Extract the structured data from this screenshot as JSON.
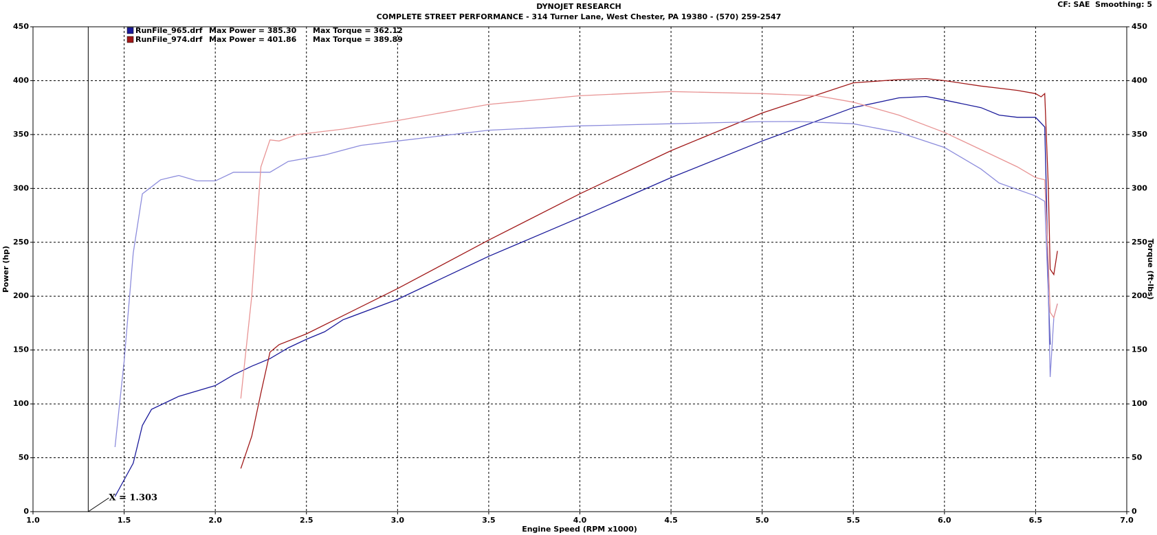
{
  "chart_data": {
    "type": "line",
    "title": "DYNOJET RESEARCH",
    "subtitle": "COMPLETE STREET PERFORMANCE - 314 Turner Lane, West Chester, PA 19380 - (570) 259-2547",
    "settings_label": "CF: SAE  Smoothing: 5",
    "x_label": "Engine Speed (RPM x1000)",
    "y_label": "Power (hp)",
    "y2_label": "Torque (ft-lbs)",
    "xlim": [
      1,
      7
    ],
    "xticks": [
      {
        "value": 1,
        "label": "1.0"
      },
      1.5,
      {
        "value": 2,
        "label": "2.0"
      },
      2.5,
      {
        "value": 3,
        "label": "3.0"
      },
      3.5,
      {
        "value": 4,
        "label": "4.0"
      },
      4.5,
      {
        "value": 5,
        "label": "5.0"
      },
      5.5,
      {
        "value": 6,
        "label": "6.0"
      },
      6.5,
      {
        "value": 7,
        "label": "7.0"
      }
    ],
    "ylim": [
      0,
      450
    ],
    "yticks": [
      0,
      50,
      100,
      150,
      200,
      250,
      300,
      350,
      400,
      450
    ],
    "y2lim": [
      0,
      450
    ],
    "y2ticks": [
      0,
      50,
      100,
      150,
      200,
      250,
      300,
      350,
      400,
      450
    ],
    "grid": true,
    "cursor": {
      "x": 1.303,
      "label": "X = 1.303"
    },
    "series": [
      {
        "name": "RunFile_965.drf",
        "color": "#1a1a9a",
        "axis": "y",
        "x": [
          1.45,
          1.55,
          1.6,
          1.65,
          1.8,
          2.0,
          2.1,
          2.2,
          2.3,
          2.4,
          2.5,
          2.6,
          2.7,
          3.0,
          3.5,
          4.0,
          4.5,
          5.0,
          5.5,
          5.75,
          5.9,
          6.0,
          6.2,
          6.3,
          6.4,
          6.5,
          6.55,
          6.56,
          6.57,
          6.58
        ],
        "values": [
          14,
          45,
          80,
          95,
          107,
          117,
          127,
          135,
          142,
          152,
          160,
          167,
          178,
          197,
          237,
          273,
          310,
          344,
          375,
          384,
          385.3,
          382,
          375,
          368,
          366,
          366,
          357,
          290,
          200,
          155
        ]
      },
      {
        "name": "RunFile_974.drf",
        "color": "#a01818",
        "axis": "y",
        "x": [
          2.14,
          2.2,
          2.25,
          2.3,
          2.35,
          2.5,
          3.0,
          3.5,
          4.0,
          4.5,
          5.0,
          5.5,
          5.75,
          5.9,
          6.0,
          6.2,
          6.4,
          6.5,
          6.53,
          6.55,
          6.57,
          6.58,
          6.6,
          6.62
        ],
        "values": [
          40,
          70,
          110,
          148,
          155,
          165,
          207,
          252,
          295,
          335,
          370,
          398,
          401,
          401.86,
          400,
          395,
          391,
          388,
          385,
          388,
          300,
          225,
          220,
          242
        ]
      },
      {
        "color": "#8c8cdc",
        "axis": "y2",
        "x": [
          1.45,
          1.5,
          1.55,
          1.6,
          1.7,
          1.8,
          1.9,
          2.0,
          2.1,
          2.3,
          2.4,
          2.6,
          2.8,
          3.0,
          3.5,
          4.0,
          4.5,
          5.0,
          5.2,
          5.5,
          5.75,
          6.0,
          6.2,
          6.3,
          6.5,
          6.55,
          6.57,
          6.58,
          6.6,
          6.62
        ],
        "values": [
          60,
          140,
          240,
          295,
          308,
          312,
          307,
          307,
          315,
          315,
          325,
          331,
          340,
          344,
          354,
          358,
          360,
          362,
          362.12,
          360,
          352,
          338,
          318,
          305,
          293,
          288,
          200,
          125,
          180,
          193
        ]
      },
      {
        "color": "#e89494",
        "axis": "y2",
        "x": [
          2.14,
          2.2,
          2.25,
          2.3,
          2.35,
          2.45,
          2.7,
          3.0,
          3.5,
          4.0,
          4.5,
          5.0,
          5.3,
          5.5,
          5.75,
          6.0,
          6.2,
          6.4,
          6.5,
          6.55,
          6.57,
          6.58,
          6.6,
          6.62
        ],
        "values": [
          105,
          200,
          320,
          345,
          344,
          350,
          355,
          363,
          378,
          386,
          389.89,
          388,
          386,
          380,
          368,
          352,
          336,
          320,
          310,
          308,
          230,
          185,
          180,
          193
        ]
      }
    ],
    "legend_stats": [
      [
        "Max Power = 385.30",
        "Max Torque = 362.12"
      ],
      [
        "Max Power = 401.86",
        "Max Torque = 389.89"
      ]
    ]
  }
}
